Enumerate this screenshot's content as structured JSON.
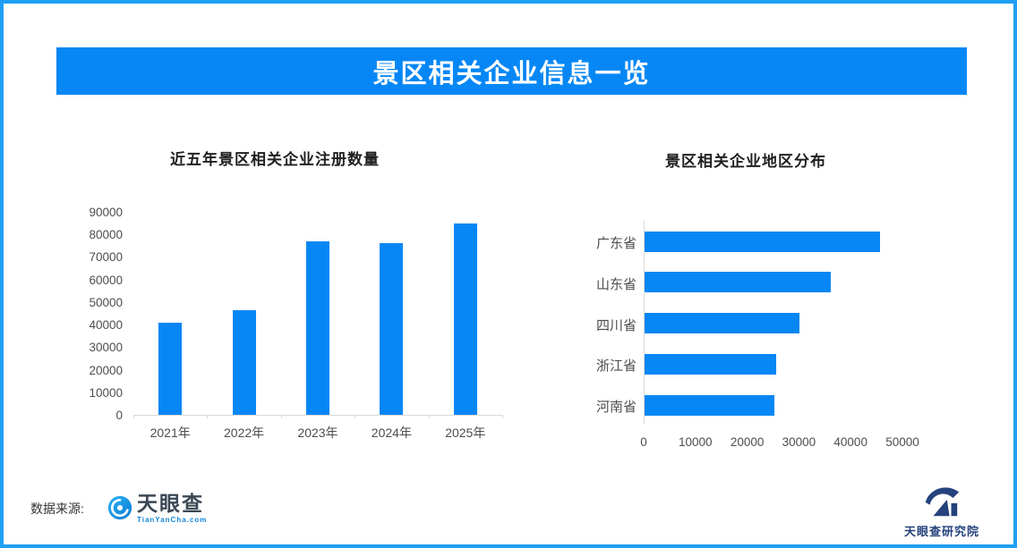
{
  "page": {
    "banner_title": "景区相关企业信息一览"
  },
  "colors": {
    "accent_blue": "#0687f5",
    "border_blue": "#1e9ff2",
    "axis_line": "#d9d9d9",
    "title_text": "#1f1f1f",
    "axis_text": "#4d4d4d",
    "banner_text": "#ffffff",
    "tianyancha_blue": "#1285d8",
    "tianyancha_dark": "#3b4754",
    "institute_navy": "#24427c"
  },
  "footer": {
    "source_label": "数据来源:",
    "tianyancha_name": "天眼查",
    "tianyancha_domain": "TianYanCha.com",
    "research_institute_name": "天眼查研究院"
  },
  "chart_data": [
    {
      "type": "bar",
      "title": "近五年景区相关企业注册数量",
      "categories": [
        "2021年",
        "2022年",
        "2023年",
        "2024年",
        "2025年"
      ],
      "values": [
        41000,
        46500,
        77000,
        76000,
        85000
      ],
      "xlabel": "",
      "ylabel": "",
      "ylim": [
        0,
        90000
      ],
      "ytick_step": 10000,
      "grid": false,
      "legend": "none",
      "bar_color": "#0687f5"
    },
    {
      "type": "bar-horizontal",
      "title": "景区相关企业地区分布",
      "categories": [
        "广东省",
        "山东省",
        "四川省",
        "浙江省",
        "河南省"
      ],
      "values": [
        45500,
        36000,
        30000,
        25500,
        25000
      ],
      "xlabel": "",
      "ylabel": "",
      "xlim": [
        0,
        50000
      ],
      "xtick_step": 10000,
      "grid": false,
      "legend": "none",
      "bar_color": "#0687f5"
    }
  ]
}
